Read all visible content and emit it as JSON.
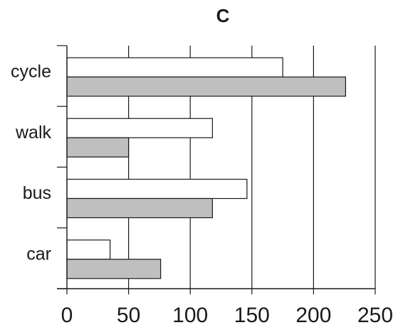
{
  "chart_data": {
    "type": "bar",
    "orientation": "horizontal",
    "title": "C",
    "xlabel": "",
    "ylabel": "",
    "categories": [
      "cycle",
      "walk",
      "bus",
      "car"
    ],
    "series": [
      {
        "values": [
          175,
          118,
          146,
          35
        ],
        "color": "#ffffff"
      },
      {
        "values": [
          226,
          50,
          118,
          76
        ],
        "color": "#bfbfbf"
      }
    ],
    "xlim": [
      0,
      250
    ],
    "xticks": [
      "0",
      "50",
      "100",
      "150",
      "200",
      "250"
    ],
    "grid": true,
    "legend": "none"
  }
}
